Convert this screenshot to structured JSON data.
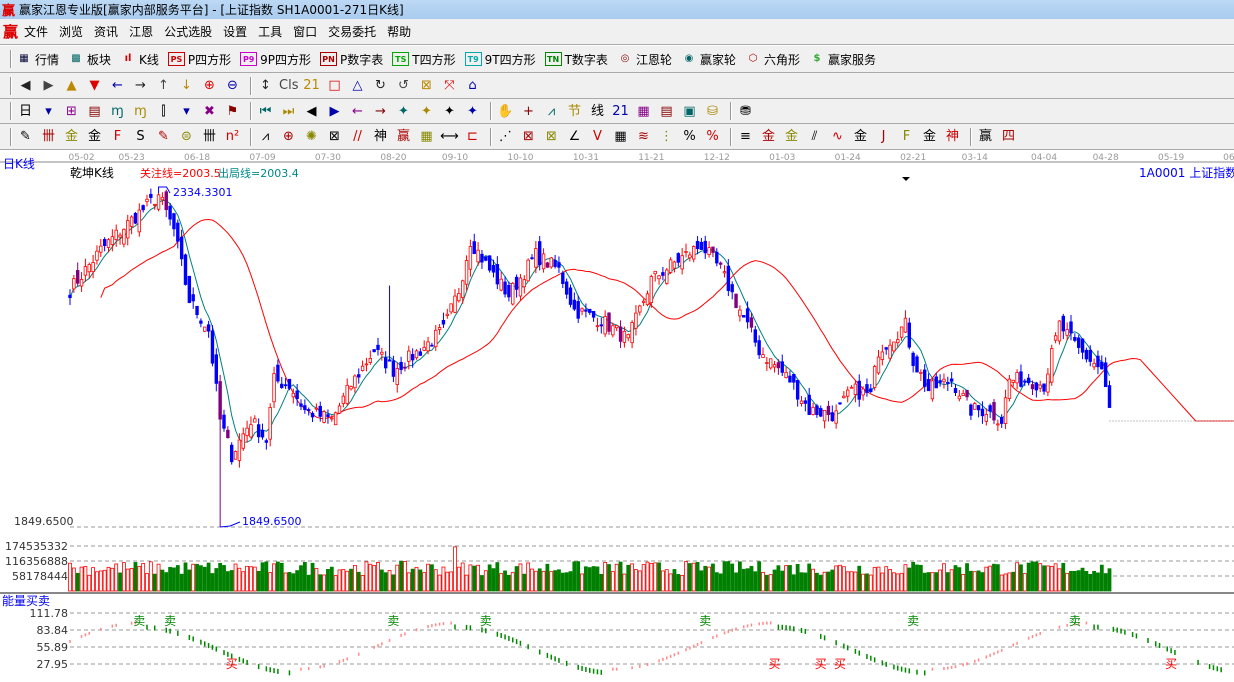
{
  "window": {
    "title": "赢家江恩专业版[赢家内部服务平台] - [上证指数  SH1A0001-271日K线]",
    "logo": "赢"
  },
  "menu": [
    "文件",
    "浏览",
    "资讯",
    "江恩",
    "公式选股",
    "设置",
    "工具",
    "窗口",
    "交易委托",
    "帮助"
  ],
  "toolbar_main": [
    {
      "label": "行情",
      "icon": "grid-icon",
      "color": "#003"
    },
    {
      "label": "板块",
      "icon": "blocks-icon",
      "color": "#066"
    },
    {
      "label": "K线",
      "icon": "kline-icon",
      "color": "#d00"
    },
    {
      "label": "P四方形",
      "icon": "PS",
      "color": "#c00"
    },
    {
      "label": "9P四方形",
      "icon": "P9",
      "color": "#c0c"
    },
    {
      "label": "P数字表",
      "icon": "PN",
      "color": "#a00"
    },
    {
      "label": "T四方形",
      "icon": "TS",
      "color": "#0a0"
    },
    {
      "label": "9T四方形",
      "icon": "T9",
      "color": "#0aa"
    },
    {
      "label": "T数字表",
      "icon": "TN",
      "color": "#080"
    },
    {
      "label": "江恩轮",
      "icon": "wheel-icon",
      "color": "#800"
    },
    {
      "label": "赢家轮",
      "icon": "big-wheel-icon",
      "color": "#066"
    },
    {
      "label": "六角形",
      "icon": "hexagon-icon",
      "color": "#a00"
    },
    {
      "label": "赢家服务",
      "icon": "dollar-icon",
      "color": "#3a3"
    }
  ],
  "toolbar_nav": [
    "◀",
    "▶",
    "▲",
    "▼",
    "←",
    "→",
    "↑",
    "↓",
    "⊕",
    "⊖",
    "↕",
    "Cls",
    "21",
    "□",
    "△",
    "↻",
    "↺",
    "⊠",
    "⤧",
    "⌂"
  ],
  "toolbar_period": [
    "日",
    "▾",
    "⊞",
    "▤",
    "ɱ",
    "ɱ",
    "⫿",
    "▾",
    "✖",
    "⚑",
    "⏮",
    "⏭",
    "◀",
    "▶",
    "←",
    "→",
    "✦",
    "✦",
    "✦",
    "✦",
    "✋",
    "+",
    "⩘",
    "节",
    "线",
    "21",
    "▦",
    "▤",
    "▣",
    "⛁",
    "⛃"
  ],
  "toolbar_draw": [
    "✎",
    "卌",
    "金",
    "金",
    "F",
    "S",
    "✎",
    "⊜",
    "卌",
    "n²",
    "⩘",
    "⊕",
    "✺",
    "⊠",
    "//",
    "神",
    "赢",
    "▦",
    "⟷",
    "⊏",
    "⋰",
    "⊠",
    "⊠",
    "∠",
    "V",
    "▦",
    "≋",
    "⋮",
    "%",
    "%",
    "≡",
    "金",
    "金",
    "⫽",
    "∿",
    "金",
    "J",
    "F",
    "金",
    "神",
    "赢",
    "四"
  ],
  "chart": {
    "period_label": "日K线",
    "indicator_name": "乾坤K线",
    "focus_line": "关注线=2003.5",
    "exit_line": "出局线=2003.4",
    "symbol": "1A0001  上证指数",
    "high_label": "2334.3301",
    "low_label": "1849.6500",
    "axis_low": "1849.6500",
    "colors": {
      "up": "#ff0000",
      "down": "#0000ff",
      "ma_short": "#008080",
      "ma_long": "#ff0000",
      "vol_down": "#008000"
    }
  },
  "chart_data": {
    "type": "candlestick",
    "candle_count": 271,
    "close_path": [
      [
        0,
        2193.5
      ],
      [
        8,
        2251.6
      ],
      [
        16,
        2295.2
      ],
      [
        23,
        2331.4
      ],
      [
        27,
        2280.6
      ],
      [
        31,
        2179.0
      ],
      [
        36,
        2135.5
      ],
      [
        39,
        2004.9
      ],
      [
        42,
        1954.1
      ],
      [
        47,
        2004.9
      ],
      [
        51,
        1975.9
      ],
      [
        53,
        2063.0
      ],
      [
        57,
        2055.7
      ],
      [
        61,
        2019.4
      ],
      [
        68,
        2004.9
      ],
      [
        73,
        2055.7
      ],
      [
        79,
        2106.5
      ],
      [
        84,
        2077.5
      ],
      [
        91,
        2106.5
      ],
      [
        97,
        2135.5
      ],
      [
        101,
        2193.5
      ],
      [
        104,
        2266.1
      ],
      [
        109,
        2222.6
      ],
      [
        114,
        2186.3
      ],
      [
        121,
        2244.4
      ],
      [
        127,
        2222.6
      ],
      [
        131,
        2164.5
      ],
      [
        138,
        2150.0
      ],
      [
        145,
        2121.0
      ],
      [
        151,
        2208.1
      ],
      [
        158,
        2237.1
      ],
      [
        164,
        2258.9
      ],
      [
        169,
        2222.6
      ],
      [
        174,
        2164.5
      ],
      [
        179,
        2106.5
      ],
      [
        187,
        2063.0
      ],
      [
        192,
        2019.4
      ],
      [
        199,
        2012.2
      ],
      [
        203,
        2048.4
      ],
      [
        208,
        2041.2
      ],
      [
        210,
        2106.5
      ],
      [
        217,
        2142.8
      ],
      [
        219,
        2092.0
      ],
      [
        223,
        2048.4
      ],
      [
        229,
        2063.0
      ],
      [
        234,
        2019.4
      ],
      [
        238,
        2019.4
      ],
      [
        242,
        2004.9
      ],
      [
        244,
        2063.0
      ],
      [
        249,
        2063.0
      ],
      [
        253,
        2055.7
      ],
      [
        257,
        2142.8
      ],
      [
        262,
        2106.5
      ],
      [
        268,
        2077.5
      ],
      [
        270,
        2019.4
      ]
    ],
    "high": 2334.3301,
    "low": 1849.65,
    "date_ticks": [
      [
        3,
        "05-02"
      ],
      [
        16,
        "05-23"
      ],
      [
        33,
        "06-18"
      ],
      [
        50,
        "07-09"
      ],
      [
        67,
        "07-30"
      ],
      [
        84,
        "08-20"
      ],
      [
        100,
        "09-10"
      ],
      [
        117,
        "10-10"
      ],
      [
        134,
        "10-31"
      ],
      [
        151,
        "11-21"
      ],
      [
        168,
        "12-12"
      ],
      [
        185,
        "01-03"
      ],
      [
        202,
        "01-24"
      ],
      [
        219,
        "02-21"
      ],
      [
        235,
        "03-14"
      ],
      [
        253,
        "04-04"
      ],
      [
        269,
        "04-28"
      ],
      [
        286,
        "05-19"
      ],
      [
        301,
        "06"
      ]
    ],
    "volume": {
      "ticks": [
        "174535332",
        "116356888",
        "58178444"
      ],
      "tick_values": [
        174535332,
        116356888,
        58178444
      ]
    },
    "energy": {
      "title": "能量买卖",
      "ticks": [
        "111.78",
        "83.84",
        "55.89",
        "27.95"
      ],
      "tick_values": [
        111.78,
        83.84,
        55.89,
        27.95
      ],
      "sell_label": "卖",
      "buy_label": "买",
      "sell_at": [
        18,
        26,
        84,
        108,
        165,
        219,
        261
      ],
      "buy_at": [
        42,
        183,
        195,
        200,
        286
      ]
    }
  }
}
